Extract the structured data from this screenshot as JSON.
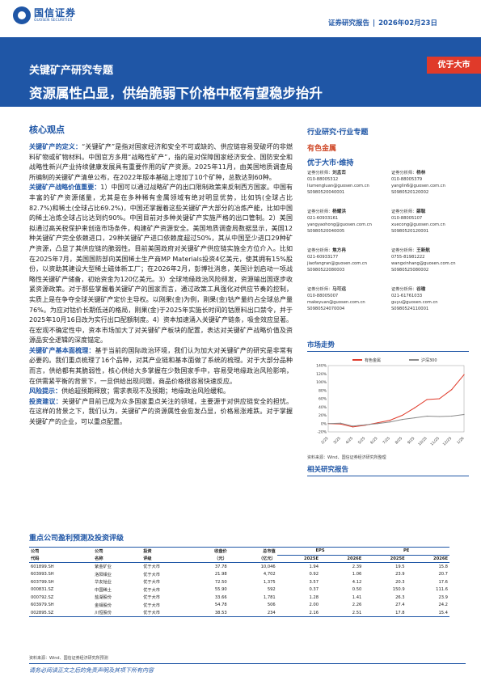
{
  "header": {
    "logo_cn": "国信证券",
    "logo_en": "GUOSEN SECURITIES",
    "report_type": "证券研究报告",
    "separator": "|",
    "date": "2026年02月23日"
  },
  "banner": {
    "subtitle": "关键矿产研究专题",
    "title": "资源属性凸显，供给脆弱下价格中枢有望稳步抬升",
    "rating": "优于大市",
    "color": "#1f56a6",
    "rating_color": "#e03a2a"
  },
  "core": {
    "title": "核心观点",
    "paragraphs": [
      {
        "label": "关键矿产的定义：",
        "text": "“关键矿产”是指对国家经济和安全不可或缺的、供应链容易受破坏的非燃料矿物或矿物材料。中国官方多用“战略性矿产”，指的是对保障国家经济安全、国防安全和战略性新兴产业持续健康发展具有重要作用的矿产资源。2025年11月，由美国地质调查局所编制的关键矿产清单公布，在2022年版本基础上增加了10个矿种，总数达到60种。"
      },
      {
        "label": "关键矿产战略价值重要：",
        "text": "1）中国可以通过战略矿产的出口限制政策来反制西方国家。中国有丰富的矿产资源储量，尤其是在多种稀有金属领域有绝对明显优势，比如钨(全球占比82.7%)和稀土(全球占比69.2%)，中国还掌握着这些关键矿产大部分的冶炼产能，比如中国的稀土冶炼全球占比达到约90%。中国目前对多种关键矿产实施严格的出口管制。2）美国拟通过高关税保护来创造市场条件，构建矿产资源安全。美国地质调查局数据显示，美国12种关键矿产完全依赖进口，29种关键矿产进口依赖度超过50%，其从中国至少进口29种矿产资源，凸显了其供应链的脆弱性。目前美国政府对关键矿产供应链实施全方位介入。比如在2025年7月，美国国防部向美国稀土生产商MP Materials投资4亿美元，使其拥有15%股份，以资助其建设大型稀土磁体新工厂；在2026年2月，彭博社消息，美国计划启动一项战略性关键矿产储备，初始资金为120亿美元。3）全球地缘政治风险频发，资源输出国逐步收紧资源政策。对于那些掌握着关键矿产的国家而言，通过政策工具强化对供应节奏的控制，实质上是在争夺全球关键矿产定价主导权。以刚果(金)为例，刚果(金)钴产量约占全球总产量76%。为应对钴价长期低迷的格局，刚果(金)于2025年实施长时间的钴原料出口禁令，并于2025年10月16日改为实行出口配额制度。4）资本加速涌入关键矿产链条，吸金效应显著。在宏观不确定性中，资本市场加大了对关键矿产板块的配置，表达对关键矿产战略价值及资源品安全逻辑的深度锚定。"
      },
      {
        "label": "关键矿产基本面梳理：",
        "text": "基于当前的国际政治环境，我们认为加大对关键矿产的研究是非常有必要的。我们重点梳理了16个品种，对其产业链和基本面做了系统的梳理。对于大部分品种而言，供给都有其脆弱性，核心供给大多掌握在少数国家手中，容易受地缘政治风险影响，在供需紧平衡的背景下，一旦供给出现问题，商品价格很容易快速反应。"
      },
      {
        "label": "风险提示：",
        "text": "供给超预期释放；需求表现不及预期；地缘政治风险缓和。"
      },
      {
        "label": "投资建议：",
        "text": "关键矿产目前已成为众多国家重点关注的领域，主要源于对供应链安全的担忧。在这样的背景之下，我们认为，关键矿产的资源属性会愈发凸显，价格易涨难跌。对于掌握关键矿产的企业，可以重点配置。"
      }
    ]
  },
  "sidebar": {
    "industry": "行业研究·行业专题",
    "sector": "有色金属",
    "rating": "优于大市·维持",
    "analysts": [
      {
        "title": "证券分析师：",
        "name": "刘孟峦",
        "phone": "010-88005312",
        "email": "liumengluan@guosen.com.cn",
        "license": "S0980520040001"
      },
      {
        "title": "证券分析师：",
        "name": "杨林",
        "phone": "010-88005379",
        "email": "yanglin6@guosen.com.cn",
        "license": "S0980520120002"
      },
      {
        "title": "证券分析师：",
        "name": "杨耀洪",
        "phone": "021-60933161",
        "email": "yangyaohong@guosen.com.cn",
        "license": "S0980520040005"
      },
      {
        "title": "证券分析师：",
        "name": "薛聪",
        "phone": "010-88005107",
        "email": "xuecong@guosen.com.cn",
        "license": "S0980520120001"
      },
      {
        "title": "证券分析师：",
        "name": "焦方冉",
        "phone": "021-60933177",
        "email": "jiaofangran@guosen.com.cn",
        "license": "S0980522080003"
      },
      {
        "title": "证券分析师：",
        "name": "王新航",
        "phone": "0755-81981222",
        "email": "wangxinhang@guosen.com.cn",
        "license": "S0980525080002"
      },
      {
        "title": "证券分析师：",
        "name": "马可远",
        "phone": "010-88005007",
        "email": "makeyuan@guosen.com.cn",
        "license": "S0980524070004"
      },
      {
        "title": "证券分析师：",
        "name": "谷瑜",
        "phone": "021-61761033",
        "email": "guyu@guosen.com.cn",
        "license": "S0980524110001"
      }
    ],
    "market_title": "市场走势",
    "chart_source": "资料来源：Wind、国信证券经济研究所整理",
    "related_title": "相关研究报告"
  },
  "chart_data": {
    "type": "line",
    "x": [
      "2/25",
      "3/25",
      "4/25",
      "5/25",
      "6/25",
      "7/25",
      "8/25",
      "9/25",
      "10/25",
      "11/25",
      "12/25",
      "1/26"
    ],
    "series": [
      {
        "name": "有色金属",
        "color": "#e03a2a",
        "values": [
          0,
          -1,
          -8,
          -4,
          2,
          8,
          20,
          38,
          58,
          60,
          82,
          118
        ]
      },
      {
        "name": "沪深300",
        "color": "#8a8a8a",
        "values": [
          0,
          1,
          -6,
          -3,
          0,
          4,
          10,
          14,
          18,
          17,
          18,
          22
        ]
      }
    ],
    "ylim": [
      -20,
      140
    ],
    "yticks": [
      -20,
      0,
      20,
      40,
      60,
      80,
      100,
      120,
      140
    ],
    "ytick_labels": [
      "-20%",
      "0%",
      "20%",
      "40%",
      "60%",
      "80%",
      "100%",
      "120%",
      "140%"
    ],
    "legend": "top"
  },
  "table": {
    "title": "重点公司盈利预测及投资评级",
    "headers_top": [
      "公司",
      "公司",
      "投资",
      "收盘价",
      "总市值",
      "EPS",
      "",
      "PE",
      ""
    ],
    "headers_bottom": [
      "代码",
      "名称",
      "评级",
      "（元）",
      "（亿元）",
      "2025E",
      "2026E",
      "2025E",
      "2026E"
    ],
    "rows": [
      [
        "601899.SH",
        "紫金矿业",
        "优于大市",
        "37.78",
        "10,046",
        "1.94",
        "2.39",
        "19.5",
        "15.8"
      ],
      [
        "603993.SH",
        "洛阳钼业",
        "优于大市",
        "21.98",
        "4,702",
        "0.92",
        "1.06",
        "23.9",
        "20.7"
      ],
      [
        "603799.SH",
        "华友钴业",
        "优于大市",
        "72.50",
        "1,375",
        "3.57",
        "4.12",
        "20.3",
        "17.6"
      ],
      [
        "000831.SZ",
        "中国稀土",
        "优于大市",
        "55.90",
        "592",
        "0.37",
        "0.50",
        "150.9",
        "111.6"
      ],
      [
        "000792.SZ",
        "盐湖股份",
        "优于大市",
        "33.66",
        "1,781",
        "1.28",
        "1.41",
        "26.3",
        "23.9"
      ],
      [
        "603979.SH",
        "金钼股份",
        "优于大市",
        "54.78",
        "506",
        "2.00",
        "2.26",
        "27.4",
        "24.2"
      ],
      [
        "002895.SZ",
        "川恒股份",
        "优于大市",
        "38.53",
        "234",
        "2.16",
        "2.51",
        "17.8",
        "15.4"
      ]
    ],
    "source": "资料来源：Wind、国信证券经济研究所预测"
  },
  "footer": {
    "disclaimer": "请务必阅读正文之后的免责声明及其项下所有内容"
  }
}
